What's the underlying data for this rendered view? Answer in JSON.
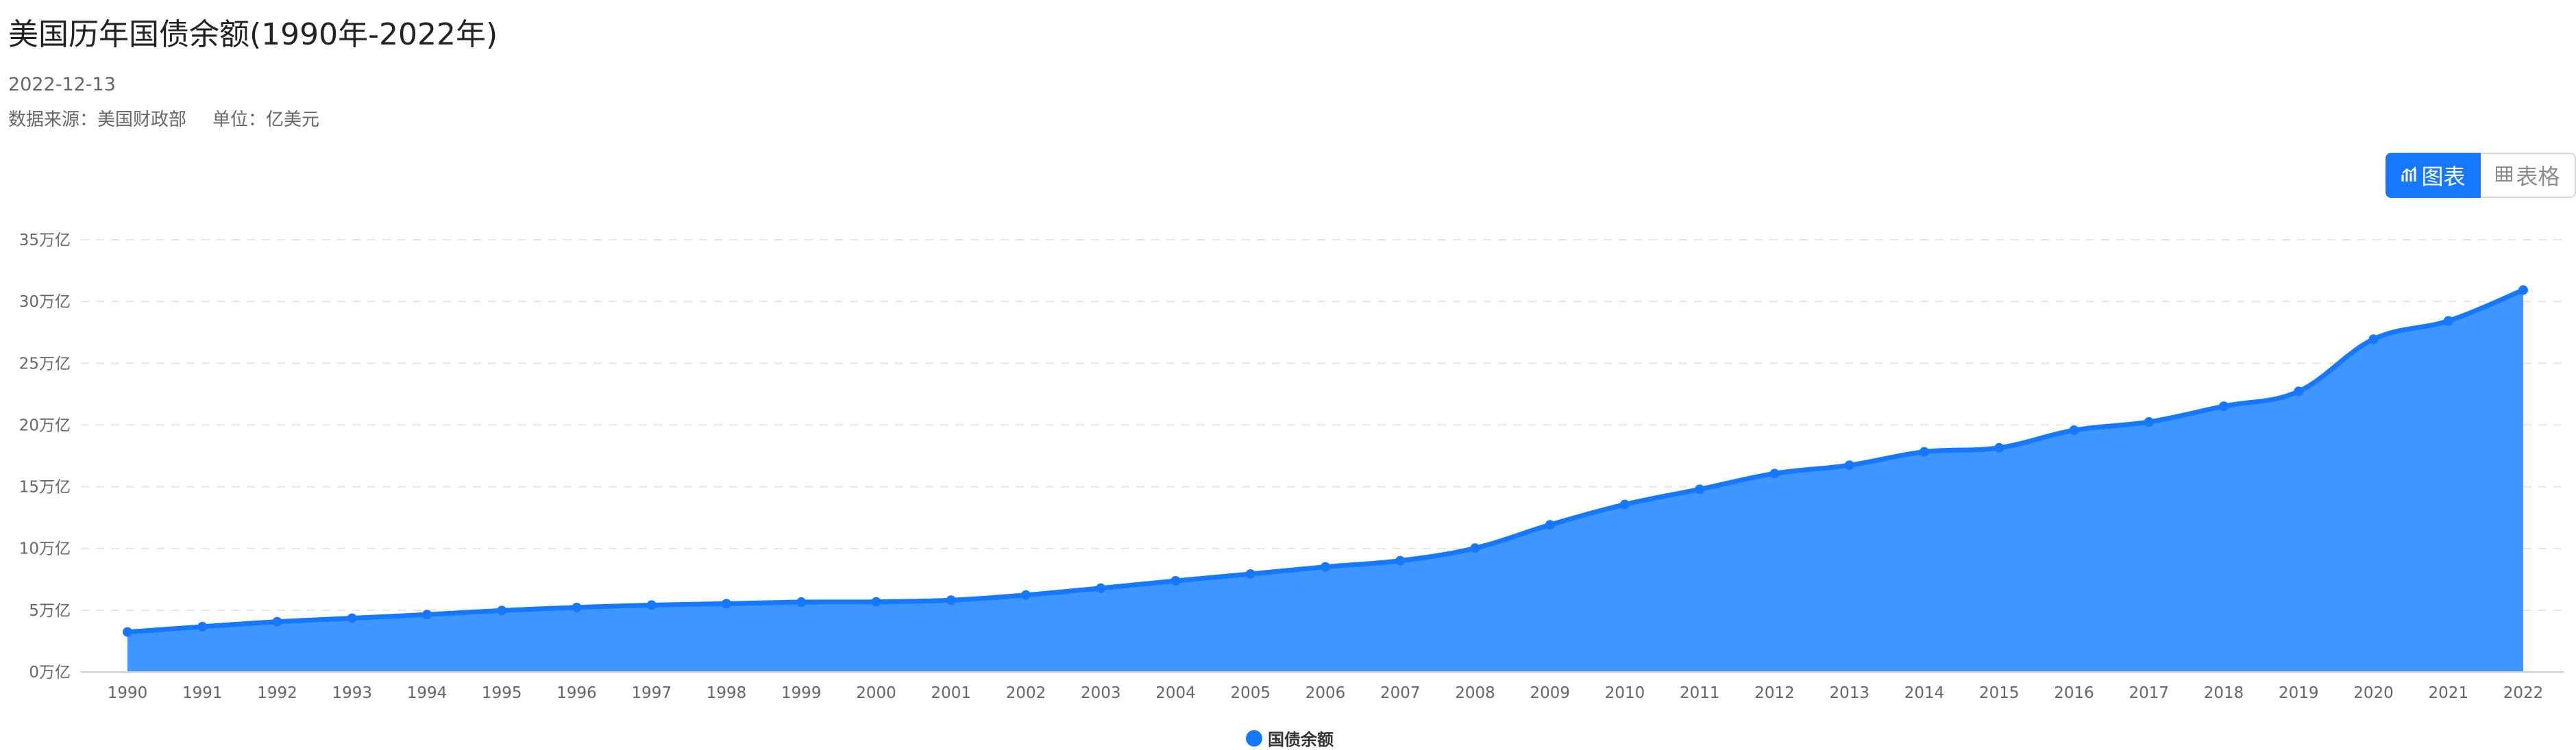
{
  "header": {
    "title": "美国历年国债余额(1990年-2022年)",
    "date": "2022-12-13",
    "source": "数据来源：美国财政部",
    "unit": "单位：亿美元"
  },
  "toggle": {
    "chart_label": "图表",
    "table_label": "表格",
    "chart_icon": "bar-chart-icon",
    "table_icon": "grid-table-icon",
    "selected": "chart"
  },
  "colors": {
    "accent": "#1677ff",
    "series_fill": "#4096ff",
    "series_line": "#1677ff"
  },
  "chart_data": {
    "type": "area",
    "title": "美国历年国债余额(1990年-2022年)",
    "xlabel": "",
    "ylabel": "",
    "ylim": [
      0,
      350000
    ],
    "yticks": [
      0,
      50000,
      100000,
      150000,
      200000,
      250000,
      300000,
      350000
    ],
    "ytick_labels": [
      "0万亿",
      "5万亿",
      "10万亿",
      "15万亿",
      "20万亿",
      "25万亿",
      "30万亿",
      "35万亿"
    ],
    "grid": true,
    "legend_position": "bottom-center",
    "categories": [
      "1990",
      "1991",
      "1992",
      "1993",
      "1994",
      "1995",
      "1996",
      "1997",
      "1998",
      "1999",
      "2000",
      "2001",
      "2002",
      "2003",
      "2004",
      "2005",
      "2006",
      "2007",
      "2008",
      "2009",
      "2010",
      "2011",
      "2012",
      "2013",
      "2014",
      "2015",
      "2016",
      "2017",
      "2018",
      "2019",
      "2020",
      "2021",
      "2022"
    ],
    "series": [
      {
        "name": "国债余额",
        "values": [
          32330,
          36650,
          40650,
          43510,
          46430,
          49740,
          52240,
          54130,
          55260,
          56560,
          56740,
          58070,
          62280,
          67830,
          73790,
          79330,
          85070,
          90080,
          100250,
          119100,
          135620,
          147900,
          160660,
          167380,
          178240,
          181510,
          195730,
          202450,
          215160,
          227190,
          269450,
          284290,
          309290
        ]
      }
    ]
  }
}
